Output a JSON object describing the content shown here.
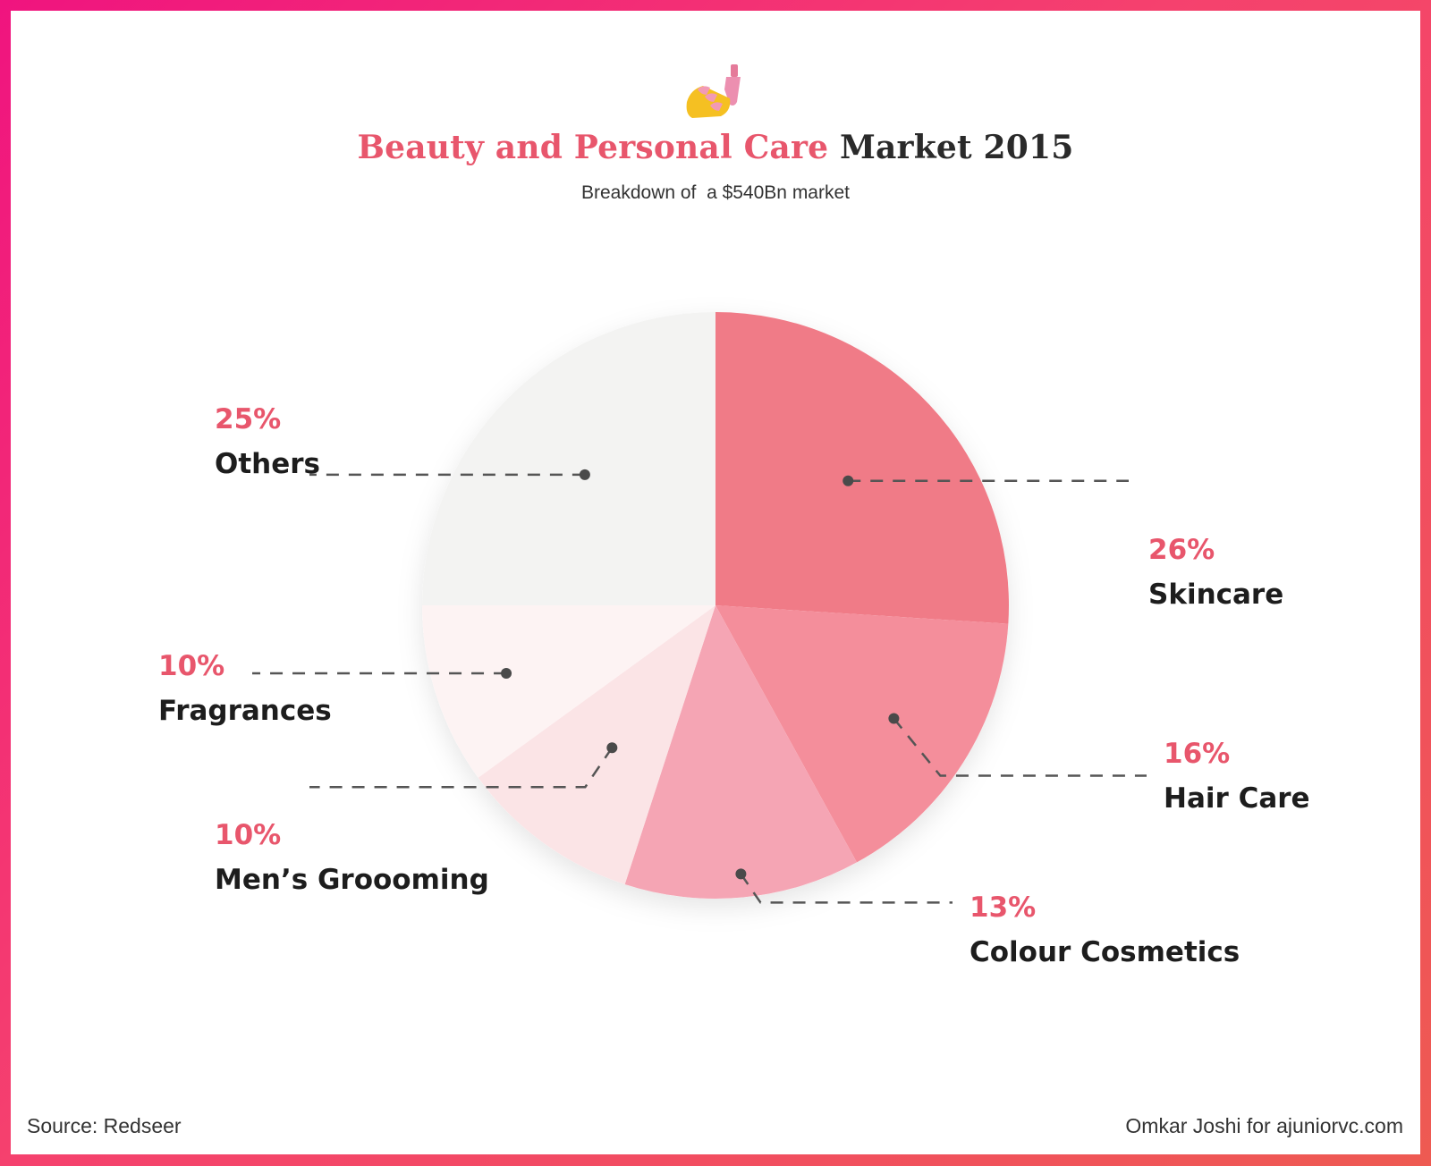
{
  "chart_data": {
    "type": "pie",
    "title_accent": "Beauty and Personal Care",
    "title_rest": "Market 2015",
    "subtitle": "Breakdown of  a $540Bn market",
    "categories": [
      "Skincare",
      "Hair Care",
      "Colour Cosmetics",
      "Men’s Groooming",
      "Fragrances",
      "Others"
    ],
    "values": [
      26,
      16,
      13,
      10,
      10,
      25
    ],
    "labels": [
      "26%",
      "16%",
      "13%",
      "10%",
      "10%",
      "25%"
    ],
    "colors": [
      "#f07b87",
      "#f48e9b",
      "#f5a5b4",
      "#fbe4e6",
      "#fdf3f3",
      "#f3f3f2"
    ]
  },
  "source": "Source: Redseer",
  "credit": "Omkar Joshi for ajuniorvc.com",
  "icon": "nail-polish-icon"
}
